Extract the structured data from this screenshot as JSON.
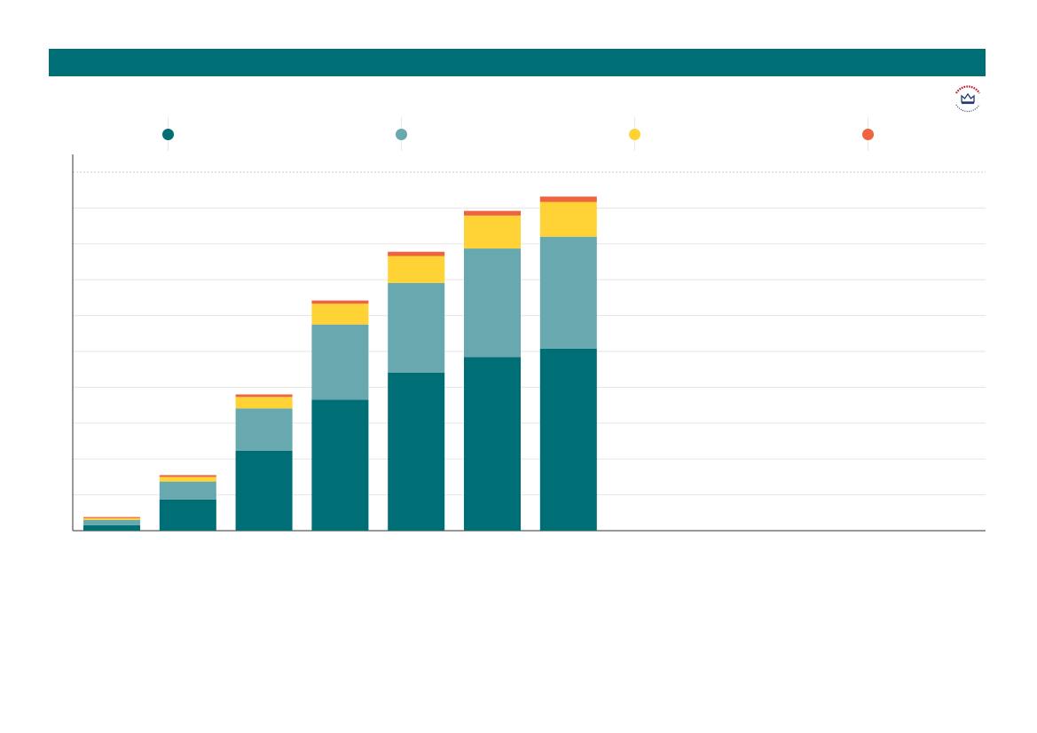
{
  "colors": {
    "header": "#006e75",
    "axis": "#333333",
    "grid": "#e6e6e6",
    "top_line": "#c8c8c8",
    "logo_red": "#c8102e",
    "logo_blue": "#1f3a6e"
  },
  "logo": {
    "icon": "crown-seal-icon"
  },
  "chart_data": {
    "type": "bar",
    "stacked": true,
    "categories": [
      "",
      "",
      "",
      "",
      "",
      "",
      ""
    ],
    "series": [
      {
        "color": "#006e75",
        "values": [
          1.5,
          8.7,
          22.3,
          36.5,
          44.1,
          48.4,
          50.8
        ]
      },
      {
        "color": "#67a9ae",
        "values": [
          1.5,
          5.0,
          11.8,
          21.0,
          25.0,
          30.3,
          31.2
        ]
      },
      {
        "color": "#ffd335",
        "values": [
          0.5,
          1.3,
          3.2,
          5.8,
          7.5,
          9.2,
          9.7
        ]
      },
      {
        "color": "#ee6441",
        "values": [
          0.3,
          0.5,
          0.7,
          0.9,
          1.2,
          1.3,
          1.5
        ]
      }
    ],
    "ylim": [
      0,
      100
    ],
    "grid": true,
    "legend_position": "top"
  }
}
